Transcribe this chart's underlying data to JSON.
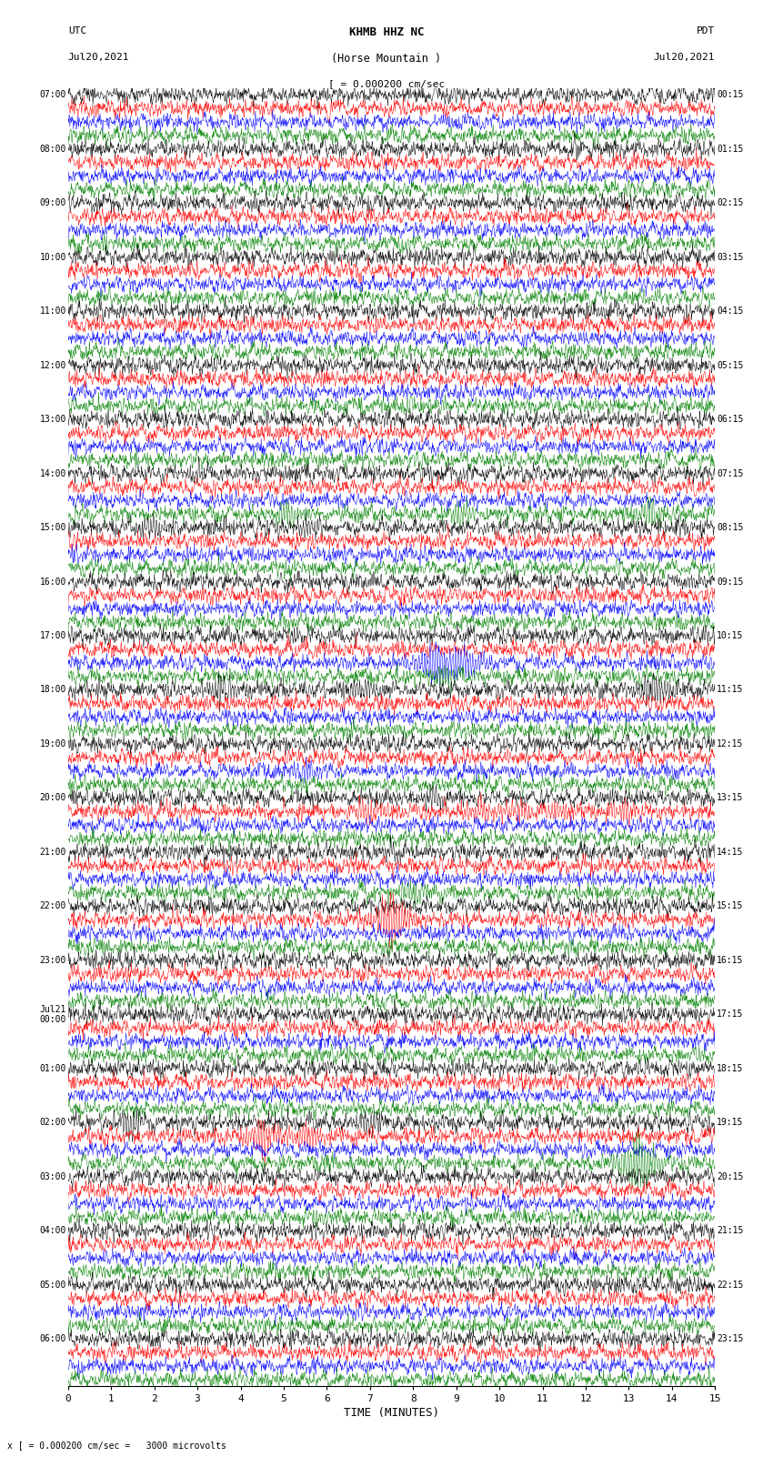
{
  "title_line1": "KHMB HHZ NC",
  "title_line2": "(Horse Mountain )",
  "title_line3": "[ = 0.000200 cm/sec",
  "xlabel": "TIME (MINUTES)",
  "footer_text": "x [ = 0.000200 cm/sec =   3000 microvolts",
  "utc_labels": [
    "07:00",
    "08:00",
    "09:00",
    "10:00",
    "11:00",
    "12:00",
    "13:00",
    "14:00",
    "15:00",
    "16:00",
    "17:00",
    "18:00",
    "19:00",
    "20:00",
    "21:00",
    "22:00",
    "23:00",
    "Jul21\n00:00",
    "01:00",
    "02:00",
    "03:00",
    "04:00",
    "05:00",
    "06:00"
  ],
  "pdt_labels": [
    "00:15",
    "01:15",
    "02:15",
    "03:15",
    "04:15",
    "05:15",
    "06:15",
    "07:15",
    "08:15",
    "09:15",
    "10:15",
    "11:15",
    "12:15",
    "13:15",
    "14:15",
    "15:15",
    "16:15",
    "17:15",
    "18:15",
    "19:15",
    "20:15",
    "21:15",
    "22:15",
    "23:15"
  ],
  "colors": [
    "black",
    "red",
    "blue",
    "green"
  ],
  "n_hours": 24,
  "traces_per_hour": 4,
  "n_samples": 1800,
  "xmin": 0,
  "xmax": 15,
  "fig_width": 8.5,
  "fig_height": 16.13,
  "dpi": 100,
  "bg_color": "white",
  "trace_amplitude": 0.3,
  "seed": 42,
  "lw": 0.35
}
